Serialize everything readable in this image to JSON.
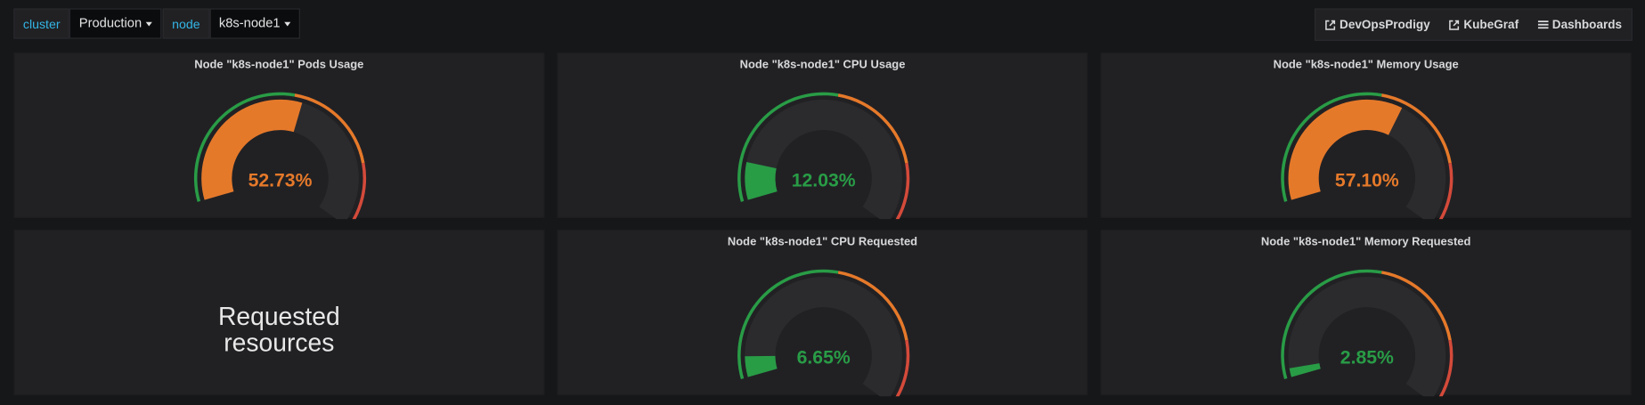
{
  "variables": [
    {
      "label": "cluster",
      "value": "Production"
    },
    {
      "label": "node",
      "value": "k8s-node1"
    }
  ],
  "links": [
    "DevOpsProdigy",
    "KubeGraf",
    "Dashboards"
  ],
  "panels": [
    {
      "type": "gauge",
      "title": "Node \"k8s-node1\" Pods Usage",
      "value": 52.73,
      "value_label": "52.73%",
      "range": [
        0,
        100
      ],
      "thresholds": [
        50,
        80
      ],
      "colors": [
        "#299c46",
        "#e5792a",
        "#d44a3a"
      ]
    },
    {
      "type": "gauge",
      "title": "Node \"k8s-node1\" CPU Usage",
      "value": 12.03,
      "value_label": "12.03%",
      "range": [
        0,
        100
      ],
      "thresholds": [
        50,
        80
      ],
      "colors": [
        "#299c46",
        "#e5792a",
        "#d44a3a"
      ]
    },
    {
      "type": "gauge",
      "title": "Node \"k8s-node1\" Memory Usage",
      "value": 57.1,
      "value_label": "57.10%",
      "range": [
        0,
        100
      ],
      "thresholds": [
        50,
        80
      ],
      "colors": [
        "#299c46",
        "#e5792a",
        "#d44a3a"
      ]
    },
    {
      "type": "text",
      "lines": [
        "Requested",
        "resources"
      ]
    },
    {
      "type": "gauge",
      "title": "Node \"k8s-node1\" CPU Requested",
      "value": 6.65,
      "value_label": "6.65%",
      "range": [
        0,
        100
      ],
      "thresholds": [
        50,
        80
      ],
      "colors": [
        "#299c46",
        "#e5792a",
        "#d44a3a"
      ]
    },
    {
      "type": "gauge",
      "title": "Node \"k8s-node1\" Memory Requested",
      "value": 2.85,
      "value_label": "2.85%",
      "range": [
        0,
        100
      ],
      "thresholds": [
        50,
        80
      ],
      "colors": [
        "#299c46",
        "#e5792a",
        "#d44a3a"
      ]
    }
  ]
}
